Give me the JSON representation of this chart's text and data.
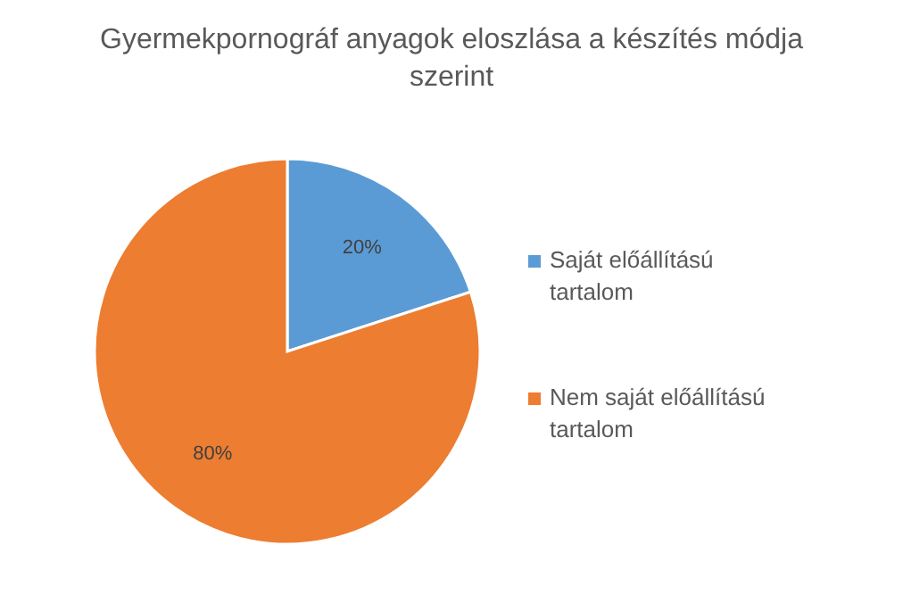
{
  "chart_data": {
    "type": "pie",
    "title": "Gyermekpornográf anyagok eloszlása a készítés módja szerint",
    "categories": [
      "Saját előállítású tartalom",
      "Nem saját előállítású tartalom"
    ],
    "values": [
      20,
      80
    ],
    "colors": [
      "#5b9bd5",
      "#ed7d31"
    ],
    "value_labels": [
      "20%",
      "80%"
    ],
    "legend": "right"
  }
}
